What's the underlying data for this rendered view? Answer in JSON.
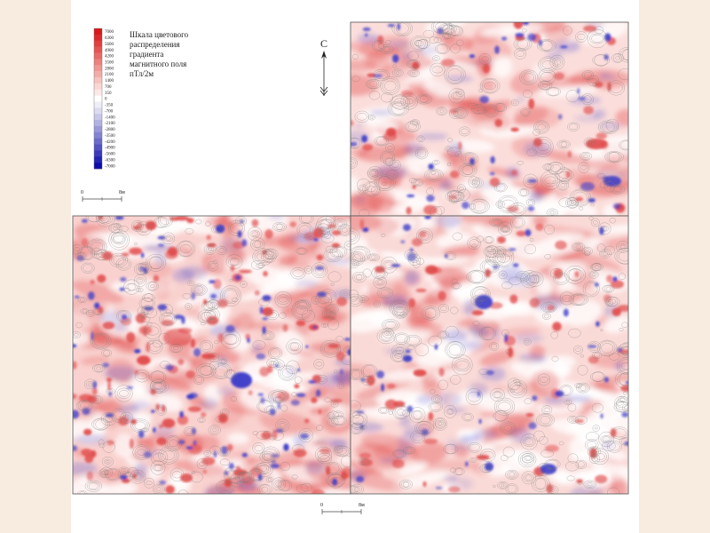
{
  "legend": {
    "title_lines": [
      "Шкала цветового",
      "распределения",
      "градиента",
      "магнитного поля",
      "пТл/2м"
    ],
    "ticks": [
      "7000",
      "6300",
      "5600",
      "4900",
      "4200",
      "3500",
      "2800",
      "2100",
      "1400",
      "700",
      "350",
      "0",
      "-350",
      "-700",
      "-1400",
      "-2100",
      "-2800",
      "-3500",
      "-4200",
      "-4900",
      "-5600",
      "-6300",
      "-7000"
    ],
    "colors": [
      "#d7191c",
      "#db2b2c",
      "#e0403f",
      "#e45552",
      "#e86b67",
      "#ec817c",
      "#f09791",
      "#f3ada8",
      "#f6c3bf",
      "#f9d7d4",
      "#fce8e6",
      "#ffffff",
      "#eeeef8",
      "#dcdcf1",
      "#c7c7ea",
      "#b1b1e2",
      "#9a9ada",
      "#8383d2",
      "#6b6bca",
      "#5353c2",
      "#3b3bba",
      "#2424b2",
      "#0c0caa"
    ]
  },
  "north": {
    "label": "С"
  },
  "scale_top": {
    "zero": "0",
    "end": "8м"
  },
  "scale_bottom": {
    "zero": "0",
    "end": "8м"
  },
  "map": {
    "positive_color": "#e04848",
    "negative_color": "#3a3ac8",
    "background_color": "#f6c9c6",
    "contour_color": "#7a7a7a"
  }
}
